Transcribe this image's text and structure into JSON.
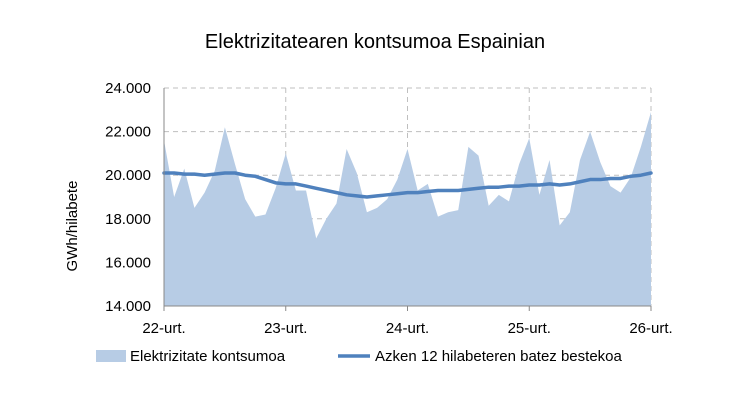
{
  "chart_data": {
    "type": "area",
    "title": "Elektrizitatearen kontsumoa Espainian",
    "ylabel": "GWh/hilabete",
    "xlabel": "",
    "ylim": [
      14000,
      24000
    ],
    "y_ticks": [
      "14.000",
      "16.000",
      "18.000",
      "20.000",
      "22.000",
      "24.000"
    ],
    "y_tick_values": [
      14000,
      16000,
      18000,
      20000,
      22000,
      24000
    ],
    "x_ticks": [
      "22-urt.",
      "23-urt.",
      "24-urt.",
      "25-urt.",
      "26-urt."
    ],
    "x_tick_months": [
      0,
      12,
      24,
      36,
      48
    ],
    "grid": true,
    "legend_position": "bottom",
    "series": [
      {
        "name": "Elektrizitate kontsumoa",
        "kind": "area",
        "color": "#b7cce5",
        "values": [
          21600,
          19000,
          20300,
          18500,
          19200,
          20200,
          22200,
          20500,
          18900,
          18100,
          18200,
          19400,
          21000,
          19300,
          19300,
          17100,
          18000,
          18700,
          21200,
          20100,
          18300,
          18500,
          18900,
          19800,
          21200,
          19300,
          19600,
          18100,
          18300,
          18400,
          21300,
          20900,
          18600,
          19100,
          18800,
          20500,
          21700,
          19100,
          20700,
          17700,
          18300,
          20700,
          22000,
          20600,
          19500,
          19200,
          19900,
          21300,
          22900
        ]
      },
      {
        "name": "Azken 12 hilabeteren batez bestekoa",
        "kind": "line",
        "color": "#4f81bd",
        "values": [
          20100,
          20100,
          20050,
          20050,
          20000,
          20050,
          20100,
          20100,
          20000,
          19950,
          19800,
          19650,
          19600,
          19600,
          19500,
          19400,
          19300,
          19200,
          19100,
          19050,
          19000,
          19050,
          19100,
          19150,
          19200,
          19200,
          19250,
          19300,
          19300,
          19300,
          19350,
          19400,
          19450,
          19450,
          19500,
          19500,
          19550,
          19550,
          19600,
          19550,
          19600,
          19700,
          19800,
          19800,
          19850,
          19850,
          19950,
          20000,
          20100
        ]
      }
    ]
  }
}
